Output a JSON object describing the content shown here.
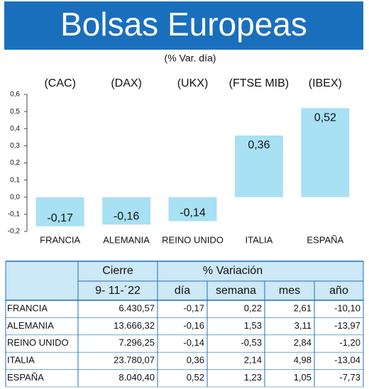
{
  "chart_data": {
    "type": "bar",
    "title": "Bolsas Europeas",
    "subtitle": "(% Var. día)",
    "categories": [
      "FRANCIA",
      "ALEMANIA",
      "REINO UNIDO",
      "ITALIA",
      "ESPAÑA"
    ],
    "indices": [
      "(CAC)",
      "(DAX)",
      "(UKX)",
      "(FTSE MIB)",
      "(IBEX)"
    ],
    "values": [
      -0.17,
      -0.16,
      -0.14,
      0.36,
      0.52
    ],
    "value_labels": [
      "-0,17",
      "-0,16",
      "-0,14",
      "0,36",
      "0,52"
    ],
    "color": "#a8e0f4",
    "ylim": [
      -0.2,
      0.6
    ],
    "yticks": [
      {
        "value": 0.6,
        "label": "0,6"
      },
      {
        "value": 0.5,
        "label": "0,5"
      },
      {
        "value": 0.4,
        "label": "0,4"
      },
      {
        "value": 0.3,
        "label": "0,3"
      },
      {
        "value": 0.2,
        "label": "0,2"
      },
      {
        "value": 0.1,
        "label": "0,1"
      },
      {
        "value": 0,
        "label": "0,0"
      },
      {
        "value": -0.1,
        "label": "-0,1"
      },
      {
        "value": -0.2,
        "label": "-0,2"
      }
    ],
    "grid": false
  },
  "table": {
    "header": [
      "Cierre",
      "% Variación"
    ],
    "subheader": [
      "9- 11-´22",
      "día",
      "semana",
      "mes",
      "año"
    ],
    "rows": [
      [
        "FRANCIA",
        "6.430,57",
        "-0,17",
        "0,22",
        "2,61",
        "-10,10"
      ],
      [
        "ALEMANIA",
        "13.666,32",
        "-0,16",
        "1,53",
        "3,11",
        "-13,97"
      ],
      [
        "REINO UNIDO",
        "7.296,25",
        "-0,14",
        "-0,53",
        "2,84",
        "-1,20"
      ],
      [
        "ITALIA",
        "23.780,07",
        "0,36",
        "2,14",
        "4,98",
        "-13,04"
      ],
      [
        "ESPAÑA",
        "8.040,40",
        "0,52",
        "1,23",
        "1,05",
        "-7,73"
      ]
    ]
  }
}
